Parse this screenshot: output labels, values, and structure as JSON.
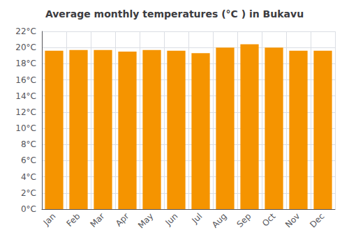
{
  "chart_data": {
    "type": "bar",
    "title": "Average monthly temperatures (°C ) in Bukavu",
    "categories": [
      "Jan",
      "Feb",
      "Mar",
      "Apr",
      "May",
      "Jun",
      "Jul",
      "Aug",
      "Sep",
      "Oct",
      "Nov",
      "Dec"
    ],
    "values": [
      19.6,
      19.7,
      19.7,
      19.5,
      19.7,
      19.6,
      19.3,
      20.0,
      20.4,
      20.0,
      19.6,
      19.6
    ],
    "color": "#F59400",
    "ylim": [
      0,
      22
    ],
    "yticks": [
      {
        "value": 0,
        "label": "0°C"
      },
      {
        "value": 2,
        "label": "2°C"
      },
      {
        "value": 4,
        "label": "4°C"
      },
      {
        "value": 6,
        "label": "6°C"
      },
      {
        "value": 8,
        "label": "8°C"
      },
      {
        "value": 10,
        "label": "10°C"
      },
      {
        "value": 12,
        "label": "12°C"
      },
      {
        "value": 14,
        "label": "14°C"
      },
      {
        "value": 16,
        "label": "16°C"
      },
      {
        "value": 18,
        "label": "18°C"
      },
      {
        "value": 20,
        "label": "20°C"
      },
      {
        "value": 22,
        "label": "22°C"
      }
    ],
    "grid": true
  }
}
